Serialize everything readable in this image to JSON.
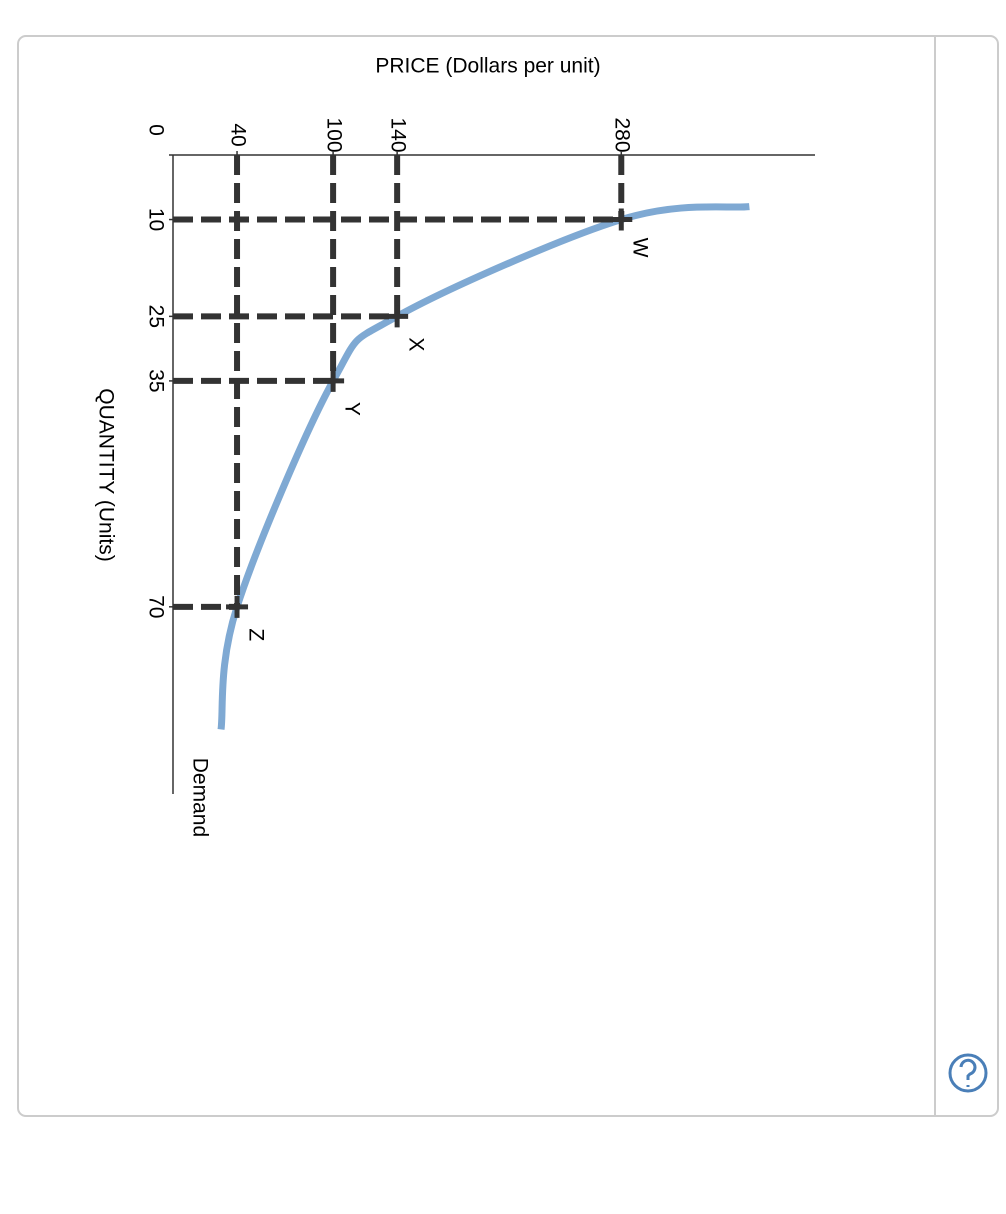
{
  "chart_data": {
    "type": "line",
    "title": "PRICE (Dollars per unit)",
    "xlabel": "QUANTITY (Units)",
    "xlim": [
      0,
      99
    ],
    "ylim": [
      0,
      401
    ],
    "xticks": [
      0,
      10,
      25,
      35,
      70
    ],
    "yticks": [
      40,
      100,
      140,
      280
    ],
    "series": [
      {
        "name": "Demand",
        "color": "#7fa9d3",
        "x": [
          8,
          10,
          25,
          35,
          70,
          89
        ],
        "values": [
          360,
          280,
          140,
          100,
          40,
          30
        ]
      }
    ],
    "points": {
      "labels": [
        "W",
        "X",
        "Y",
        "Z"
      ],
      "x": [
        10,
        25,
        35,
        70
      ],
      "values": [
        280,
        140,
        100,
        40
      ],
      "color": "#333333"
    }
  }
}
